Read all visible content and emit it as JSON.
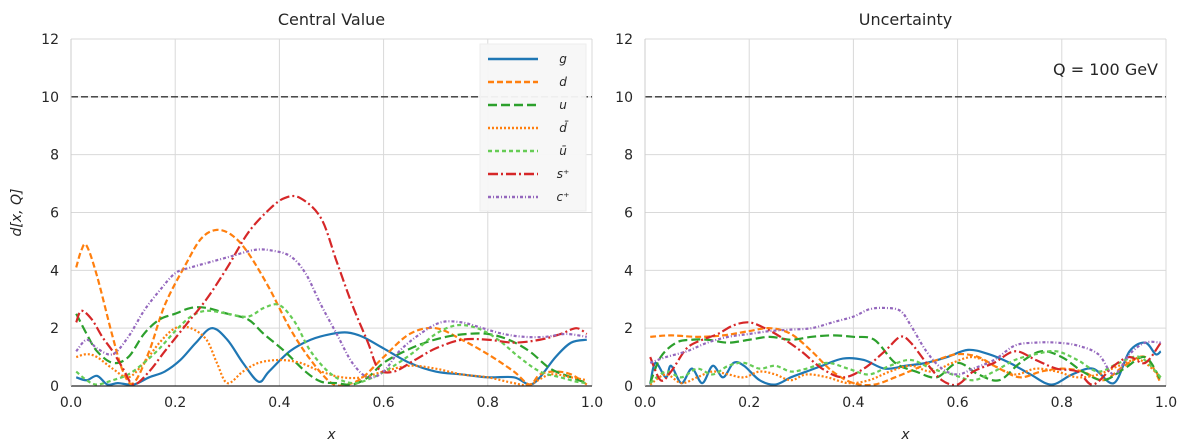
{
  "chart_data": [
    {
      "type": "line",
      "title": "Central Value",
      "xlabel": "x",
      "ylabel": "d[x, Q]",
      "xlim": [
        0.0,
        1.0
      ],
      "ylim": [
        0,
        12
      ],
      "xticks": [
        "0.0",
        "0.2",
        "0.4",
        "0.6",
        "0.8",
        "1.0"
      ],
      "yticks": [
        "0",
        "2",
        "4",
        "6",
        "8",
        "10",
        "12"
      ],
      "grid": true,
      "legend": "top-right",
      "reference_line": {
        "y": 10,
        "style": "dashed",
        "color": "#333333"
      },
      "series": [
        {
          "name": "g",
          "color": "#1f77b4",
          "dash": "solid",
          "x": [
            0.01,
            0.03,
            0.05,
            0.07,
            0.09,
            0.12,
            0.15,
            0.18,
            0.21,
            0.24,
            0.27,
            0.3,
            0.33,
            0.36,
            0.38,
            0.42,
            0.46,
            0.5,
            0.53,
            0.56,
            0.6,
            0.65,
            0.7,
            0.75,
            0.8,
            0.85,
            0.88,
            0.9,
            0.93,
            0.96,
            0.99
          ],
          "y": [
            0.3,
            0.2,
            0.35,
            0.05,
            0.1,
            0.05,
            0.3,
            0.5,
            0.9,
            1.5,
            2.0,
            1.6,
            0.8,
            0.15,
            0.5,
            1.2,
            1.6,
            1.8,
            1.85,
            1.7,
            1.3,
            0.8,
            0.5,
            0.4,
            0.3,
            0.3,
            0.05,
            0.3,
            1.0,
            1.5,
            1.6
          ]
        },
        {
          "name": "d",
          "color": "#ff7f0e",
          "dash": "6,3",
          "x": [
            0.01,
            0.02,
            0.03,
            0.05,
            0.08,
            0.1,
            0.12,
            0.15,
            0.18,
            0.22,
            0.25,
            0.28,
            0.31,
            0.34,
            0.38,
            0.42,
            0.46,
            0.5,
            0.53,
            0.56,
            0.6,
            0.65,
            0.7,
            0.75,
            0.8,
            0.85,
            0.88,
            0.9,
            0.93,
            0.96,
            0.99
          ],
          "y": [
            4.1,
            4.7,
            4.85,
            3.8,
            1.7,
            0.5,
            0.1,
            1.2,
            2.8,
            4.2,
            5.1,
            5.4,
            5.2,
            4.6,
            3.4,
            2.0,
            0.9,
            0.1,
            0.05,
            0.3,
            1.0,
            1.8,
            2.0,
            1.6,
            1.1,
            0.5,
            0.05,
            0.4,
            0.5,
            0.4,
            0.05
          ]
        },
        {
          "name": "u",
          "color": "#2ca02c",
          "dash": "9,4",
          "x": [
            0.01,
            0.03,
            0.05,
            0.08,
            0.11,
            0.14,
            0.17,
            0.2,
            0.23,
            0.26,
            0.3,
            0.34,
            0.37,
            0.41,
            0.45,
            0.48,
            0.51,
            0.54,
            0.57,
            0.6,
            0.64,
            0.68,
            0.72,
            0.76,
            0.8,
            0.84,
            0.88,
            0.92,
            0.96,
            0.99
          ],
          "y": [
            2.5,
            1.8,
            1.2,
            0.8,
            1.0,
            1.8,
            2.3,
            2.5,
            2.7,
            2.7,
            2.5,
            2.3,
            1.8,
            1.2,
            0.5,
            0.15,
            0.1,
            0.05,
            0.3,
            0.8,
            1.2,
            1.5,
            1.7,
            1.8,
            1.8,
            1.6,
            1.2,
            0.6,
            0.3,
            0.1
          ]
        },
        {
          "name": "d̄",
          "color": "#ff7f0e",
          "dash": "2,2",
          "x": [
            0.01,
            0.03,
            0.05,
            0.08,
            0.11,
            0.14,
            0.17,
            0.2,
            0.23,
            0.26,
            0.28,
            0.3,
            0.33,
            0.36,
            0.4,
            0.44,
            0.48,
            0.52,
            0.56,
            0.6,
            0.65,
            0.7,
            0.75,
            0.8,
            0.85,
            0.88,
            0.92,
            0.96,
            0.99
          ],
          "y": [
            1.0,
            1.1,
            1.0,
            0.6,
            0.3,
            0.8,
            1.5,
            2.0,
            2.0,
            1.6,
            0.8,
            0.1,
            0.5,
            0.8,
            0.9,
            0.8,
            0.5,
            0.3,
            0.3,
            0.5,
            0.7,
            0.6,
            0.4,
            0.3,
            0.1,
            0.05,
            0.4,
            0.3,
            0.2
          ]
        },
        {
          "name": "ū",
          "color": "#66cc55",
          "dash": "4,3",
          "x": [
            0.01,
            0.03,
            0.05,
            0.08,
            0.11,
            0.14,
            0.17,
            0.2,
            0.23,
            0.26,
            0.3,
            0.34,
            0.37,
            0.4,
            0.43,
            0.46,
            0.5,
            0.54,
            0.58,
            0.62,
            0.66,
            0.7,
            0.74,
            0.78,
            0.82,
            0.86,
            0.9,
            0.94,
            0.97,
            0.99
          ],
          "y": [
            0.5,
            0.2,
            0.05,
            0.2,
            0.4,
            0.8,
            1.3,
            1.9,
            2.4,
            2.6,
            2.5,
            2.4,
            2.7,
            2.8,
            2.2,
            1.2,
            0.4,
            0.1,
            0.3,
            0.7,
            1.2,
            1.8,
            2.1,
            2.0,
            1.6,
            1.0,
            0.5,
            0.3,
            0.15,
            0.1
          ]
        },
        {
          "name": "s⁺",
          "color": "#d62728",
          "dash": "10,3,2,3",
          "x": [
            0.01,
            0.02,
            0.04,
            0.06,
            0.08,
            0.1,
            0.12,
            0.15,
            0.18,
            0.22,
            0.26,
            0.3,
            0.34,
            0.38,
            0.41,
            0.44,
            0.48,
            0.51,
            0.54,
            0.57,
            0.59,
            0.62,
            0.66,
            0.7,
            0.75,
            0.8,
            0.85,
            0.9,
            0.94,
            0.97,
            0.99
          ],
          "y": [
            2.2,
            2.6,
            2.3,
            1.7,
            1.2,
            0.6,
            0.05,
            0.5,
            1.2,
            2.1,
            3.0,
            4.1,
            5.3,
            6.1,
            6.5,
            6.5,
            5.8,
            4.3,
            2.8,
            1.5,
            0.6,
            0.5,
            0.9,
            1.3,
            1.6,
            1.6,
            1.5,
            1.6,
            1.8,
            2.0,
            1.8
          ]
        },
        {
          "name": "c⁺",
          "color": "#9467bd",
          "dash": "3,2,1,2",
          "x": [
            0.01,
            0.03,
            0.05,
            0.08,
            0.11,
            0.14,
            0.17,
            0.2,
            0.23,
            0.27,
            0.31,
            0.35,
            0.38,
            0.42,
            0.45,
            0.48,
            0.51,
            0.54,
            0.57,
            0.6,
            0.63,
            0.67,
            0.71,
            0.75,
            0.79,
            0.83,
            0.87,
            0.91,
            0.95,
            0.99
          ],
          "y": [
            1.2,
            1.6,
            1.3,
            1.1,
            1.7,
            2.6,
            3.3,
            3.9,
            4.1,
            4.3,
            4.5,
            4.7,
            4.7,
            4.5,
            3.9,
            2.8,
            1.8,
            0.8,
            0.3,
            0.5,
            1.2,
            1.8,
            2.2,
            2.2,
            2.0,
            1.8,
            1.7,
            1.7,
            1.8,
            1.7
          ]
        }
      ]
    },
    {
      "type": "line",
      "title": "Uncertainty",
      "xlabel": "x",
      "ylabel": "",
      "xlim": [
        0.0,
        1.0
      ],
      "ylim": [
        0,
        12
      ],
      "xticks": [
        "0.0",
        "0.2",
        "0.4",
        "0.6",
        "0.8",
        "1.0"
      ],
      "yticks": [
        "0",
        "2",
        "4",
        "6",
        "8",
        "10",
        "12"
      ],
      "grid": true,
      "annotation": "Q = 100 GeV",
      "reference_line": {
        "y": 10,
        "style": "dashed",
        "color": "#333333"
      },
      "series": [
        {
          "color": "#1f77b4",
          "dash": "solid",
          "x": [
            0.01,
            0.02,
            0.04,
            0.05,
            0.07,
            0.09,
            0.11,
            0.13,
            0.15,
            0.17,
            0.19,
            0.22,
            0.25,
            0.28,
            0.31,
            0.34,
            0.38,
            0.42,
            0.46,
            0.5,
            0.54,
            0.58,
            0.62,
            0.66,
            0.7,
            0.74,
            0.78,
            0.82,
            0.86,
            0.9,
            0.93,
            0.96,
            0.98,
            0.99
          ],
          "y": [
            0.05,
            0.8,
            0.3,
            0.7,
            0.1,
            0.6,
            0.1,
            0.7,
            0.3,
            0.8,
            0.7,
            0.2,
            0.05,
            0.3,
            0.5,
            0.7,
            0.95,
            0.9,
            0.6,
            0.7,
            0.8,
            1.0,
            1.25,
            1.1,
            0.8,
            0.4,
            0.05,
            0.4,
            0.6,
            0.1,
            1.2,
            1.5,
            1.1,
            1.2
          ]
        },
        {
          "color": "#ff7f0e",
          "dash": "6,3",
          "x": [
            0.01,
            0.05,
            0.1,
            0.15,
            0.2,
            0.24,
            0.28,
            0.32,
            0.36,
            0.4,
            0.44,
            0.48,
            0.52,
            0.56,
            0.6,
            0.64,
            0.68,
            0.72,
            0.76,
            0.8,
            0.84,
            0.88,
            0.92,
            0.96,
            0.99
          ],
          "y": [
            1.7,
            1.75,
            1.7,
            1.75,
            1.9,
            2.0,
            1.8,
            1.2,
            0.5,
            0.1,
            0.05,
            0.3,
            0.6,
            0.9,
            1.1,
            1.0,
            0.6,
            0.3,
            0.5,
            0.6,
            0.5,
            0.2,
            0.7,
            1.0,
            0.1
          ]
        },
        {
          "color": "#2ca02c",
          "dash": "9,4",
          "x": [
            0.01,
            0.03,
            0.06,
            0.09,
            0.12,
            0.16,
            0.2,
            0.24,
            0.28,
            0.32,
            0.36,
            0.4,
            0.44,
            0.48,
            0.52,
            0.56,
            0.6,
            0.64,
            0.68,
            0.72,
            0.76,
            0.8,
            0.84,
            0.88,
            0.92,
            0.96,
            0.99
          ],
          "y": [
            0.1,
            1.0,
            1.5,
            1.6,
            1.6,
            1.5,
            1.6,
            1.7,
            1.6,
            1.7,
            1.75,
            1.7,
            1.6,
            0.8,
            0.5,
            0.3,
            0.8,
            0.4,
            0.2,
            0.8,
            1.2,
            1.0,
            0.5,
            0.2,
            0.6,
            1.0,
            0.2
          ]
        },
        {
          "color": "#ff7f0e",
          "dash": "2,2",
          "x": [
            0.01,
            0.04,
            0.07,
            0.1,
            0.13,
            0.16,
            0.19,
            0.22,
            0.25,
            0.28,
            0.31,
            0.35,
            0.39,
            0.43,
            0.47,
            0.51,
            0.55,
            0.59,
            0.63,
            0.67,
            0.71,
            0.75,
            0.79,
            0.83,
            0.87,
            0.91,
            0.95,
            0.99
          ],
          "y": [
            0.05,
            0.4,
            0.1,
            0.3,
            0.5,
            0.4,
            0.3,
            0.5,
            0.4,
            0.2,
            0.4,
            0.3,
            0.1,
            0.2,
            0.5,
            0.7,
            0.5,
            0.8,
            1.0,
            0.7,
            0.4,
            0.6,
            0.5,
            0.3,
            0.4,
            0.7,
            0.9,
            0.3
          ]
        },
        {
          "color": "#66cc55",
          "dash": "4,3",
          "x": [
            0.01,
            0.04,
            0.07,
            0.1,
            0.13,
            0.16,
            0.19,
            0.22,
            0.25,
            0.28,
            0.31,
            0.35,
            0.39,
            0.43,
            0.47,
            0.51,
            0.55,
            0.59,
            0.63,
            0.67,
            0.71,
            0.75,
            0.79,
            0.83,
            0.87,
            0.91,
            0.95,
            0.99
          ],
          "y": [
            0.1,
            0.5,
            0.3,
            0.6,
            0.4,
            0.7,
            0.8,
            0.6,
            0.7,
            0.5,
            0.6,
            0.8,
            0.6,
            0.4,
            0.7,
            0.9,
            0.6,
            0.4,
            0.2,
            0.5,
            0.9,
            1.1,
            1.2,
            0.9,
            0.5,
            0.8,
            1.0,
            0.3
          ]
        },
        {
          "color": "#d62728",
          "dash": "10,3,2,3",
          "x": [
            0.01,
            0.03,
            0.05,
            0.08,
            0.11,
            0.14,
            0.17,
            0.2,
            0.23,
            0.26,
            0.3,
            0.34,
            0.38,
            0.42,
            0.46,
            0.49,
            0.51,
            0.54,
            0.57,
            0.6,
            0.63,
            0.67,
            0.71,
            0.75,
            0.79,
            0.83,
            0.86,
            0.9,
            0.93,
            0.96,
            0.99
          ],
          "y": [
            1.0,
            0.2,
            0.5,
            1.3,
            1.6,
            1.8,
            2.1,
            2.2,
            2.0,
            1.7,
            1.2,
            0.6,
            0.3,
            0.6,
            1.2,
            1.7,
            1.5,
            0.8,
            0.2,
            0.05,
            0.5,
            0.8,
            1.2,
            0.9,
            0.6,
            0.5,
            0.05,
            0.7,
            1.0,
            0.8,
            1.5
          ]
        },
        {
          "color": "#9467bd",
          "dash": "3,2,1,2",
          "x": [
            0.01,
            0.04,
            0.08,
            0.12,
            0.16,
            0.2,
            0.24,
            0.28,
            0.32,
            0.36,
            0.4,
            0.43,
            0.46,
            0.49,
            0.51,
            0.54,
            0.57,
            0.6,
            0.63,
            0.67,
            0.71,
            0.75,
            0.79,
            0.83,
            0.87,
            0.9,
            0.93,
            0.96,
            0.99
          ],
          "y": [
            0.8,
            1.0,
            1.2,
            1.5,
            1.7,
            1.8,
            1.9,
            1.95,
            2.0,
            2.2,
            2.4,
            2.65,
            2.7,
            2.6,
            2.1,
            1.2,
            0.6,
            0.4,
            0.6,
            0.9,
            1.4,
            1.5,
            1.5,
            1.4,
            1.1,
            0.4,
            1.1,
            1.5,
            1.5
          ]
        }
      ]
    }
  ]
}
